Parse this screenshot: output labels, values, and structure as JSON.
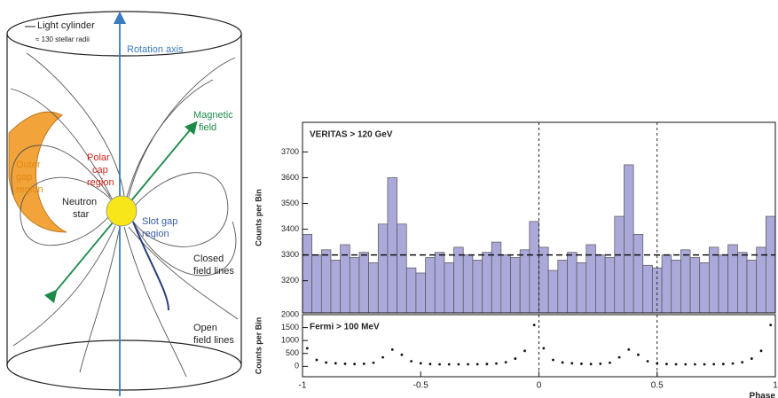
{
  "diagram": {
    "light_cylinder": "Light cylinder",
    "radii": "≈ 130 stellar radii",
    "rotation_axis": "Rotation axis",
    "magnetic_field": [
      "Magnetic",
      "field"
    ],
    "outer_gap": [
      "Outer",
      "gap",
      "region"
    ],
    "polar_cap": [
      "Polar",
      "cap",
      "region"
    ],
    "neutron_star": [
      "Neutron",
      "star"
    ],
    "slot_gap": [
      "Slot gap",
      "region"
    ],
    "closed_lines": [
      "Closed",
      "field lines"
    ],
    "open_lines": [
      "Open",
      "field lines"
    ]
  },
  "chart_data": [
    {
      "type": "histogram",
      "annotation": "VERITAS > 120 GeV",
      "y_label": "Counts per Bin",
      "color": "#aba9d9",
      "bins": [
        -1,
        -0.96,
        -0.92,
        -0.88,
        -0.84,
        -0.8,
        -0.76,
        -0.72,
        -0.68,
        -0.64,
        -0.6,
        -0.56,
        -0.52,
        -0.48,
        -0.44,
        -0.4,
        -0.36,
        -0.32,
        -0.28,
        -0.24,
        -0.2,
        -0.16,
        -0.12,
        -0.08,
        -0.04,
        0,
        0.04,
        0.08,
        0.12,
        0.16,
        0.2,
        0.24,
        0.28,
        0.32,
        0.36,
        0.4,
        0.44,
        0.48,
        0.52,
        0.56,
        0.6,
        0.64,
        0.68,
        0.72,
        0.76,
        0.8,
        0.84,
        0.88,
        0.92,
        0.96,
        1
      ],
      "values": [
        3380,
        3300,
        3320,
        3280,
        3340,
        3290,
        3310,
        3270,
        3420,
        3600,
        3420,
        3250,
        3230,
        3290,
        3310,
        3270,
        3330,
        3300,
        3280,
        3310,
        3350,
        3300,
        3290,
        3320,
        3430,
        3330,
        3240,
        3280,
        3310,
        3270,
        3340,
        3300,
        3290,
        3450,
        3650,
        3380,
        3260,
        3250,
        3300,
        3280,
        3320,
        3290,
        3270,
        3330,
        3300,
        3340,
        3310,
        3280,
        3330,
        3450
      ],
      "xlim": [
        -1,
        1
      ],
      "ylim": [
        3075,
        3815
      ],
      "yticks": [
        3200,
        3300,
        3400,
        3500,
        3600,
        3700
      ],
      "hline": 3300,
      "vlines": [
        0,
        0.5
      ]
    },
    {
      "type": "scatter",
      "annotation": "Fermi > 100 MeV",
      "y_label": "Counts per Bin",
      "x_label": "Phase",
      "color": "#111111",
      "x": [
        -0.98,
        -0.94,
        -0.9,
        -0.86,
        -0.82,
        -0.78,
        -0.74,
        -0.7,
        -0.66,
        -0.62,
        -0.58,
        -0.54,
        -0.5,
        -0.46,
        -0.42,
        -0.38,
        -0.34,
        -0.3,
        -0.26,
        -0.22,
        -0.18,
        -0.14,
        -0.1,
        -0.06,
        -0.02,
        0.02,
        0.06,
        0.1,
        0.14,
        0.18,
        0.22,
        0.26,
        0.3,
        0.34,
        0.38,
        0.42,
        0.46,
        0.5,
        0.54,
        0.58,
        0.62,
        0.66,
        0.7,
        0.74,
        0.78,
        0.82,
        0.86,
        0.9,
        0.94,
        0.98
      ],
      "values": [
        700,
        250,
        150,
        120,
        100,
        90,
        100,
        140,
        350,
        650,
        450,
        200,
        120,
        90,
        80,
        80,
        80,
        80,
        85,
        90,
        110,
        160,
        300,
        600,
        1600,
        700,
        250,
        150,
        120,
        100,
        90,
        100,
        140,
        350,
        650,
        450,
        200,
        120,
        90,
        80,
        80,
        80,
        80,
        85,
        90,
        110,
        160,
        300,
        600,
        1600
      ],
      "xlim": [
        -1,
        1
      ],
      "xticks": [
        -1,
        -0.5,
        0,
        0.5,
        1
      ],
      "ylim": [
        -400,
        2000
      ],
      "yticks": [
        0,
        500,
        1000,
        1500,
        2000
      ],
      "vlines": [
        0,
        0.5
      ]
    }
  ]
}
